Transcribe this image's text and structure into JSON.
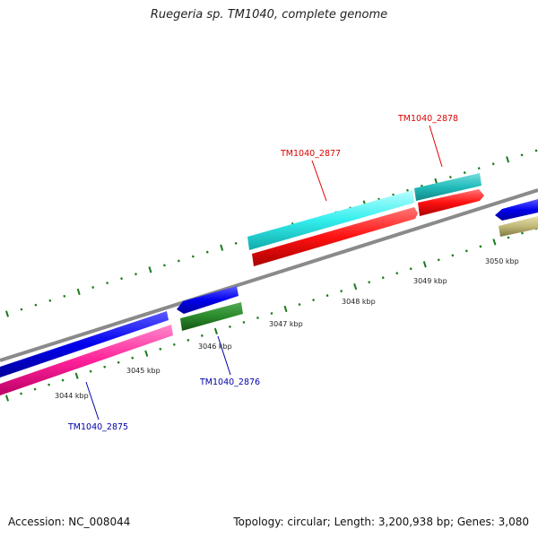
{
  "title": "Ruegeria sp. TM1040, complete genome",
  "footer": {
    "accession": "Accession: NC_008044",
    "summary": "Topology: circular; Length: 3,200,938 bp; Genes: 3,080"
  },
  "scale": {
    "labels": [
      "3044 kbp",
      "3045 kbp",
      "3046 kbp",
      "3047 kbp",
      "3048 kbp",
      "3049 kbp",
      "3050 kbp"
    ]
  },
  "genes": [
    {
      "name": "TM1040_2875",
      "color": "#0000aa"
    },
    {
      "name": "TM1040_2876",
      "color": "#0000aa"
    },
    {
      "name": "TM1040_2877",
      "color": "#dd0000"
    },
    {
      "name": "TM1040_2878",
      "color": "#dd0000"
    }
  ],
  "colors": {
    "backbone": "#8a8a8a",
    "tick": "#1a7a1a",
    "blue": "#0000ee",
    "pink": "#ff33aa",
    "green": "#2a8a2a",
    "cyan": "#33dddd",
    "teal": "#22bbbb",
    "red": "#ff1111",
    "olive": "#b8b070"
  }
}
